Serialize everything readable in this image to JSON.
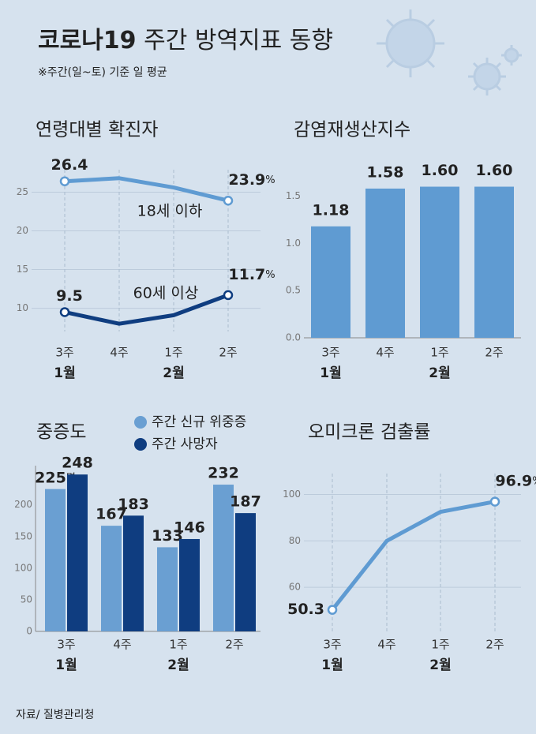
{
  "title": [
    "코로나19",
    "주간 방역지표 동향"
  ],
  "subtitle": "※주간(일~토) 기준 일 평균",
  "source": "자료/ 질병관리청",
  "chart_data": [
    {
      "type": "line",
      "title": "연령대별 확진자",
      "categories": [
        "3주",
        "4주",
        "1주",
        "2주"
      ],
      "months": [
        "1월",
        null,
        "2월",
        null
      ],
      "ylim": [
        7,
        27.9
      ],
      "yticks": [
        10,
        15,
        20,
        25
      ],
      "grid": true,
      "series": [
        {
          "name": "18세 이하",
          "color": "#5f9bd2",
          "values": [
            26.4,
            26.8,
            25.6,
            23.9
          ],
          "value_labels": [
            "26.4",
            null,
            null,
            "23.9%"
          ]
        },
        {
          "name": "60세 이상",
          "color": "#0f3d80",
          "values": [
            9.5,
            8.0,
            9.1,
            11.7
          ],
          "value_labels": [
            "9.5",
            null,
            null,
            "11.7%"
          ]
        }
      ]
    },
    {
      "type": "bar",
      "title": "감염재생산지수",
      "categories": [
        "3주",
        "4주",
        "1주",
        "2주"
      ],
      "months": [
        "1월",
        null,
        "2월",
        null
      ],
      "ylim": [
        0,
        1.78
      ],
      "yticks": [
        {
          "value": 0,
          "label": "0.0"
        },
        0.5,
        {
          "value": 1,
          "label": "1.0"
        },
        1.5
      ],
      "grid": false,
      "color": "#5f9bd2",
      "values": [
        1.18,
        1.58,
        1.6,
        1.6
      ],
      "value_labels": [
        "1.18",
        "1.58",
        "1.60",
        "1.60"
      ]
    },
    {
      "type": "grouped-bar",
      "title": "중증도",
      "categories": [
        "3주",
        "4주",
        "1주",
        "2주"
      ],
      "months": [
        "1월",
        null,
        "2월",
        null
      ],
      "ylim": [
        0,
        262
      ],
      "yticks": [
        0,
        50,
        100,
        150,
        200
      ],
      "grid": false,
      "series": [
        {
          "name": "주간 신규 위중증",
          "color": "#6a9fd2",
          "values": [
            225,
            167,
            133,
            232
          ],
          "value_labels": [
            "225명",
            "167",
            "133",
            "232"
          ]
        },
        {
          "name": "주간 사망자",
          "color": "#0f3d80",
          "values": [
            248,
            183,
            146,
            187
          ],
          "value_labels": [
            "248",
            "183",
            "146",
            "187"
          ]
        }
      ]
    },
    {
      "type": "line",
      "title": "오미크론 검출률",
      "categories": [
        "3주",
        "4주",
        "1주",
        "2주"
      ],
      "months": [
        "1월",
        null,
        "2월",
        null
      ],
      "ylim": [
        41,
        109
      ],
      "yticks": [
        60,
        80,
        100
      ],
      "grid": true,
      "series": [
        {
          "color": "#5f9bd2",
          "values": [
            50.3,
            80,
            92.5,
            96.9
          ],
          "value_labels": [
            "50.3",
            null,
            null,
            "96.9%"
          ]
        }
      ]
    }
  ]
}
